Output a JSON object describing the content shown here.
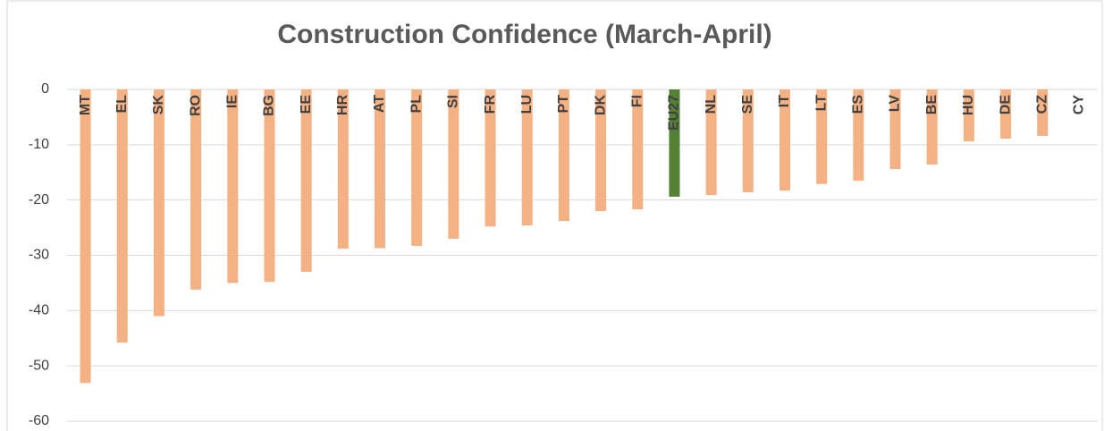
{
  "chart_data": {
    "type": "bar",
    "title": "Construction Confidence (March-April)",
    "categories": [
      "MT",
      "EL",
      "SK",
      "RO",
      "IE",
      "BG",
      "EE",
      "HR",
      "AT",
      "PL",
      "SI",
      "FR",
      "LU",
      "PT",
      "DK",
      "FI",
      "EU27",
      "NL",
      "SE",
      "IT",
      "LT",
      "ES",
      "LV",
      "BE",
      "HU",
      "DE",
      "CZ",
      "CY"
    ],
    "values": [
      -53.1,
      -45.8,
      -41,
      -36.2,
      -35,
      -34.8,
      -33,
      -28.8,
      -28.7,
      -28.3,
      -27,
      -24.8,
      -24.6,
      -23.8,
      -22,
      -21.7,
      -19.4,
      -19.1,
      -18.6,
      -18.3,
      -17.1,
      -16.5,
      -14.4,
      -13.6,
      -9.4,
      -8.9,
      -8.4,
      0
    ],
    "colors": [
      "#f4b183",
      "#f4b183",
      "#f4b183",
      "#f4b183",
      "#f4b183",
      "#f4b183",
      "#f4b183",
      "#f4b183",
      "#f4b183",
      "#f4b183",
      "#f4b183",
      "#f4b183",
      "#f4b183",
      "#f4b183",
      "#f4b183",
      "#f4b183",
      "#548235",
      "#f4b183",
      "#f4b183",
      "#f4b183",
      "#f4b183",
      "#f4b183",
      "#f4b183",
      "#f4b183",
      "#f4b183",
      "#f4b183",
      "#f4b183",
      "#f4b183"
    ],
    "ylim": [
      -60,
      0
    ],
    "yticks": [
      0,
      -10,
      -20,
      -30,
      -40,
      -50,
      -60
    ],
    "grid": true
  }
}
